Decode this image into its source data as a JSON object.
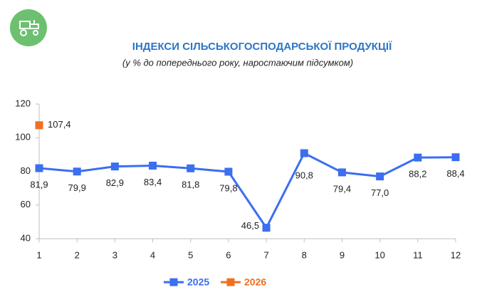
{
  "chart_data": {
    "type": "line",
    "title": "ІНДЕКСИ СІЛЬСЬКОГОСПОДАРСЬКОЇ ПРОДУКЦІЇ",
    "subtitle": "(у % до попереднього року, наростаючим підсумком)",
    "x": [
      1,
      2,
      3,
      4,
      5,
      6,
      7,
      8,
      9,
      10,
      11,
      12
    ],
    "xlim": [
      1,
      12
    ],
    "xticks": [
      1,
      2,
      3,
      4,
      5,
      6,
      7,
      8,
      9,
      10,
      11,
      12
    ],
    "ylim": [
      40,
      120
    ],
    "yticks": [
      40,
      60,
      80,
      100,
      120
    ],
    "grid": false,
    "legend": "bottom",
    "series": [
      {
        "name": "2025",
        "color": "#3b6ef0",
        "values": [
          81.9,
          79.9,
          82.9,
          83.4,
          81.8,
          79.8,
          46.5,
          90.8,
          79.4,
          77.0,
          88.2,
          88.4
        ],
        "value_labels": [
          "81,9",
          "79,9",
          "82,9",
          "83,4",
          "81,8",
          "79,8",
          "46,5",
          "90,8",
          "79,4",
          "77,0",
          "88,2",
          "88,4"
        ]
      },
      {
        "name": "2026",
        "color": "#f07020",
        "values": [
          107.4,
          null,
          null,
          null,
          null,
          null,
          null,
          null,
          null,
          null,
          null,
          null
        ],
        "value_labels": [
          "107,4",
          null,
          null,
          null,
          null,
          null,
          null,
          null,
          null,
          null,
          null,
          null
        ]
      }
    ]
  }
}
